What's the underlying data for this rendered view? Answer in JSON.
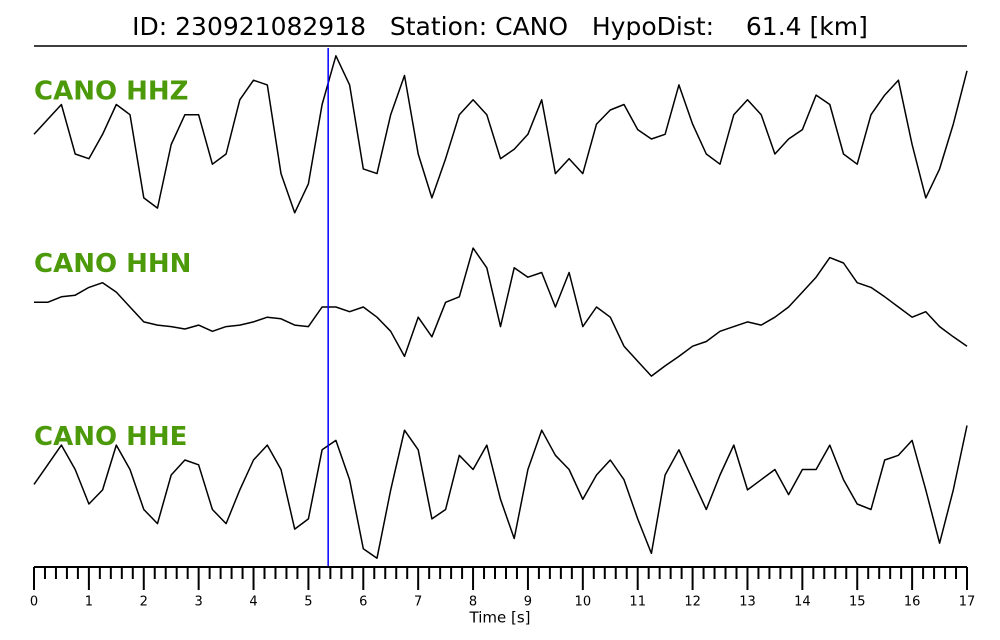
{
  "chart_data": {
    "type": "line",
    "title": "ID: 230921082918   Station: CANO   HypoDist:    61.4 [km]",
    "xlabel": "Time [s]",
    "x": [
      0,
      0.25,
      0.5,
      0.75,
      1,
      1.25,
      1.5,
      1.75,
      2,
      2.25,
      2.5,
      2.75,
      3,
      3.25,
      3.5,
      3.75,
      4,
      4.25,
      4.5,
      4.75,
      5,
      5.25,
      5.5,
      5.75,
      6,
      6.25,
      6.5,
      6.75,
      7,
      7.25,
      7.5,
      7.75,
      8,
      8.25,
      8.5,
      8.75,
      9,
      9.25,
      9.5,
      9.75,
      10,
      10.25,
      10.5,
      10.75,
      11,
      11.25,
      11.5,
      11.75,
      12,
      12.25,
      12.5,
      12.75,
      13,
      13.25,
      13.5,
      13.75,
      14,
      14.25,
      14.5,
      14.75,
      15,
      15.25,
      15.5,
      15.75,
      16,
      16.25,
      16.5,
      16.75,
      17
    ],
    "series": [
      {
        "name": "CANO HHZ",
        "color": "#000000",
        "values": [
          0,
          0.19,
          0.38,
          -0.25,
          -0.31,
          0,
          0.38,
          0.25,
          -0.81,
          -0.94,
          -0.13,
          0.25,
          0.25,
          -0.38,
          -0.25,
          0.44,
          0.69,
          0.63,
          -0.5,
          -1.0,
          -0.63,
          0.38,
          1.0,
          0.63,
          -0.44,
          -0.5,
          0.25,
          0.75,
          -0.25,
          -0.81,
          -0.31,
          0.25,
          0.44,
          0.25,
          -0.31,
          -0.19,
          0,
          0.44,
          -0.5,
          -0.31,
          -0.5,
          0.13,
          0.31,
          0.38,
          0.06,
          -0.06,
          0,
          0.63,
          0.13,
          -0.25,
          -0.38,
          0.25,
          0.44,
          0.25,
          -0.25,
          -0.06,
          0.06,
          0.5,
          0.38,
          -0.25,
          -0.38,
          0.25,
          0.5,
          0.69,
          -0.13,
          -0.81,
          -0.44,
          0.13,
          0.81
        ]
      },
      {
        "name": "CANO HHN",
        "color": "#000000",
        "values": [
          0.06,
          0.06,
          0.13,
          0.15,
          0.25,
          0.31,
          0.19,
          0,
          -0.19,
          -0.23,
          -0.25,
          -0.28,
          -0.23,
          -0.31,
          -0.25,
          -0.23,
          -0.19,
          -0.13,
          -0.15,
          -0.23,
          -0.25,
          0,
          0,
          -0.06,
          0,
          -0.13,
          -0.31,
          -0.63,
          -0.13,
          -0.38,
          0.06,
          0.13,
          0.75,
          0.5,
          -0.25,
          0.5,
          0.38,
          0.44,
          0,
          0.44,
          -0.25,
          0,
          -0.13,
          -0.5,
          -0.69,
          -0.88,
          -0.75,
          -0.63,
          -0.5,
          -0.44,
          -0.31,
          -0.25,
          -0.19,
          -0.23,
          -0.13,
          0,
          0.19,
          0.38,
          0.63,
          0.56,
          0.31,
          0.25,
          0.13,
          0,
          -0.13,
          -0.06,
          -0.25,
          -0.38,
          -0.5
        ]
      },
      {
        "name": "CANO HHE",
        "color": "#000000",
        "values": [
          -0.06,
          0.19,
          0.44,
          0.13,
          -0.31,
          -0.13,
          0.44,
          0.13,
          -0.38,
          -0.56,
          0.06,
          0.25,
          0.19,
          -0.38,
          -0.56,
          -0.13,
          0.25,
          0.44,
          0.13,
          -0.63,
          -0.5,
          0.38,
          0.5,
          0,
          -0.88,
          -1.0,
          -0.13,
          0.63,
          0.38,
          -0.5,
          -0.38,
          0.31,
          0.13,
          0.44,
          -0.25,
          -0.75,
          0.13,
          0.63,
          0.31,
          0.13,
          -0.25,
          0.06,
          0.25,
          0,
          -0.5,
          -0.94,
          0.06,
          0.38,
          0,
          -0.38,
          0.06,
          0.44,
          -0.13,
          0,
          0.13,
          -0.19,
          0.13,
          0.13,
          0.44,
          0,
          -0.31,
          -0.38,
          0.25,
          0.31,
          0.5,
          -0.13,
          -0.81,
          -0.13,
          0.69
        ]
      }
    ],
    "label_color": "#4c9a0a",
    "pick": 5.36,
    "pick_color": "#0000ff",
    "xlim": [
      0,
      17
    ],
    "ylim": [
      -1.1,
      1.1
    ],
    "xticks": [
      0,
      1,
      2,
      3,
      4,
      5,
      6,
      7,
      8,
      9,
      10,
      11,
      12,
      13,
      14,
      15,
      16,
      17
    ],
    "xminorticks": [
      0.2,
      0.4,
      0.6,
      0.8,
      1.2,
      1.4,
      1.6,
      1.8,
      2.2,
      2.4,
      2.6,
      2.8,
      3.2,
      3.4,
      3.6,
      3.8,
      4.2,
      4.4,
      4.6,
      4.8,
      5.2,
      5.4,
      5.6,
      5.8,
      6.2,
      6.4,
      6.6,
      6.8,
      7.2,
      7.4,
      7.6,
      7.8,
      8.2,
      8.4,
      8.6,
      8.8,
      9.2,
      9.4,
      9.6,
      9.8,
      10.2,
      10.4,
      10.6,
      10.8,
      11.2,
      11.4,
      11.6,
      11.8,
      12.2,
      12.4,
      12.6,
      12.8,
      13.2,
      13.4,
      13.6,
      13.8,
      14.2,
      14.4,
      14.6,
      14.8,
      15.2,
      15.4,
      15.6,
      15.8,
      16.2,
      16.4,
      16.6,
      16.8
    ]
  }
}
